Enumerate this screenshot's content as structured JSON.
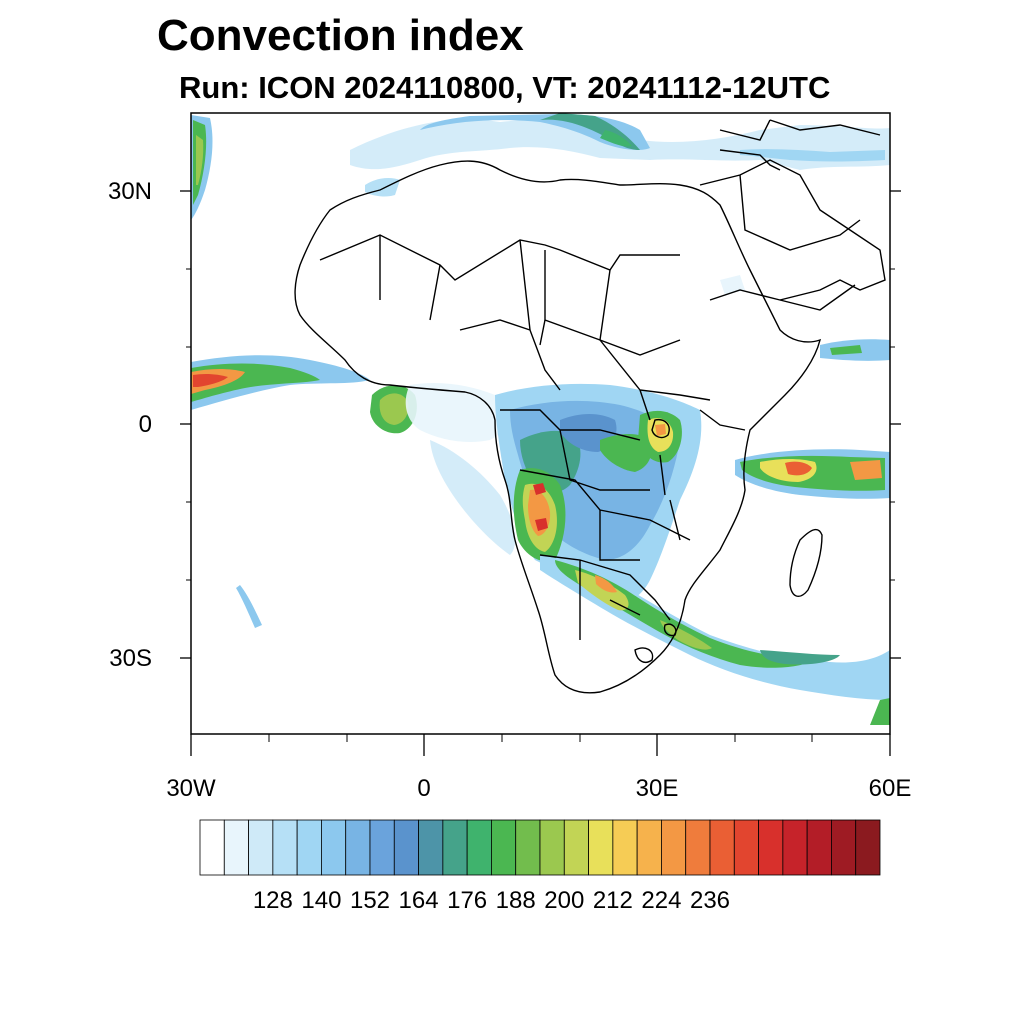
{
  "title": "Convection index",
  "subtitle": "Run: ICON 2024110800,  VT: 20241112-12UTC",
  "map": {
    "region": "Africa",
    "lon_range": [
      -30,
      60
    ],
    "lat_range": [
      -40,
      40
    ],
    "lat_ticks": [
      "30N",
      "0",
      "30S"
    ],
    "lon_ticks": [
      "30W",
      "0",
      "30E",
      "60E"
    ]
  },
  "colorbar": {
    "labels": [
      "128",
      "140",
      "152",
      "164",
      "176",
      "188",
      "200",
      "212",
      "224",
      "236"
    ],
    "colors": [
      "#ffffff",
      "#e8f5fc",
      "#cfeaf8",
      "#b6e0f6",
      "#a0d6f3",
      "#8cc8ee",
      "#78b4e4",
      "#6aa3dc",
      "#5a93cd",
      "#4d94a8",
      "#45a38a",
      "#3fb36d",
      "#4bb751",
      "#72bd4d",
      "#9bc84f",
      "#c2d455",
      "#e8e05a",
      "#f6cc55",
      "#f6b24c",
      "#f39844",
      "#ef7c3c",
      "#ea5f34",
      "#e2452f",
      "#d8302c",
      "#c6232a",
      "#b31d27",
      "#9e1b23",
      "#8b1a1f"
    ]
  }
}
